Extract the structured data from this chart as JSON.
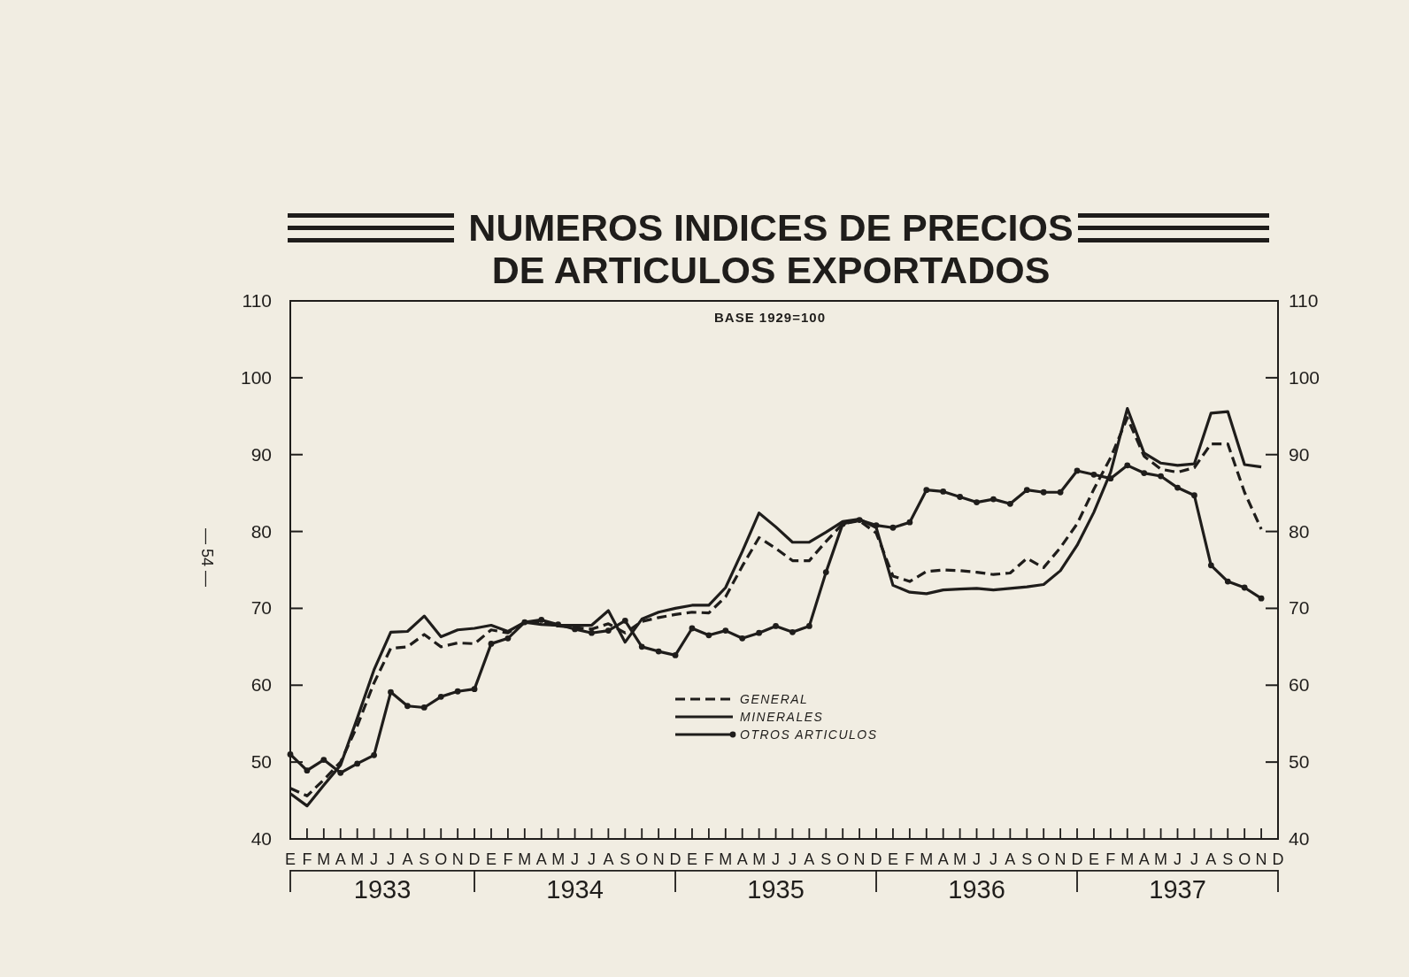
{
  "chart_data": {
    "type": "line",
    "title": "NUMEROS INDICES DE PRECIOS\nDE ARTICULOS EXPORTADOS",
    "subtitle": "BASE 1929=100",
    "categories": [
      "E",
      "F",
      "M",
      "A",
      "M",
      "J",
      "J",
      "A",
      "S",
      "O",
      "N",
      "D",
      "E",
      "F",
      "M",
      "A",
      "M",
      "J",
      "J",
      "A",
      "S",
      "O",
      "N",
      "D",
      "E",
      "F",
      "M",
      "A",
      "M",
      "J",
      "J",
      "A",
      "S",
      "O",
      "N",
      "D",
      "E",
      "F",
      "M",
      "A",
      "M",
      "J",
      "J",
      "A",
      "S",
      "O",
      "N",
      "D",
      "E",
      "F",
      "M",
      "A",
      "M",
      "J",
      "J",
      "A",
      "S",
      "O",
      "N",
      "D"
    ],
    "series": [
      {
        "name": "GENERAL",
        "color": "#1f1d1b",
        "line_style": "dashed",
        "marker": "none",
        "values": [
          46.6,
          45.6,
          47.7,
          50.0,
          54.7,
          60.3,
          64.8,
          65.0,
          66.6,
          65.0,
          65.5,
          65.4,
          67.2,
          66.8,
          68.2,
          68.2,
          67.7,
          67.5,
          67.3,
          68.0,
          66.8,
          68.3,
          68.8,
          69.2,
          69.5,
          69.4,
          71.5,
          75.5,
          79.2,
          77.8,
          76.2,
          76.2,
          78.7,
          81.0,
          81.4,
          79.8,
          74.2,
          73.5,
          74.8,
          75.0,
          74.9,
          74.7,
          74.4,
          74.6,
          76.5,
          75.3,
          77.9,
          81.0,
          85.5,
          89.6,
          94.8,
          89.8,
          88.1,
          87.7,
          88.3,
          91.4,
          91.4,
          85.1,
          80.3,
          null
        ]
      },
      {
        "name": "MINERALES",
        "color": "#1f1d1b",
        "line_style": "solid",
        "marker": "none",
        "values": [
          45.9,
          44.3,
          47.0,
          49.6,
          55.7,
          62.0,
          66.9,
          67.0,
          69.0,
          66.3,
          67.2,
          67.4,
          67.8,
          67.0,
          68.2,
          67.9,
          67.8,
          67.8,
          67.8,
          69.7,
          65.6,
          68.6,
          69.5,
          70.0,
          70.4,
          70.4,
          72.7,
          77.4,
          82.4,
          80.6,
          78.6,
          78.6,
          79.9,
          81.3,
          81.6,
          80.5,
          73.0,
          72.1,
          71.9,
          72.4,
          72.5,
          72.6,
          72.4,
          72.6,
          72.8,
          73.1,
          74.9,
          78.2,
          82.5,
          87.7,
          96.0,
          90.2,
          88.9,
          88.6,
          88.8,
          95.4,
          95.6,
          88.7,
          88.4,
          null
        ]
      },
      {
        "name": "OTROS ARTICULOS",
        "color": "#1f1d1b",
        "line_style": "solid",
        "marker": "circle",
        "values": [
          51.0,
          48.9,
          50.3,
          48.6,
          49.8,
          50.9,
          59.1,
          57.3,
          57.1,
          58.5,
          59.2,
          59.5,
          65.4,
          66.1,
          68.2,
          68.5,
          67.9,
          67.3,
          66.8,
          67.1,
          68.4,
          65.0,
          64.4,
          63.9,
          67.4,
          66.5,
          67.1,
          66.1,
          66.8,
          67.7,
          66.9,
          67.7,
          74.7,
          81.0,
          81.5,
          80.8,
          80.5,
          81.2,
          85.4,
          85.2,
          84.5,
          83.8,
          84.2,
          83.6,
          85.4,
          85.1,
          85.1,
          87.9,
          87.4,
          86.9,
          88.6,
          87.6,
          87.2,
          85.7,
          84.7,
          75.6,
          73.5,
          72.7,
          71.3,
          null
        ]
      }
    ],
    "ylim": [
      40,
      110
    ],
    "yticks": [
      40,
      50,
      60,
      70,
      80,
      90,
      100,
      110
    ],
    "y2lim": [
      40,
      110
    ],
    "y2ticks": [
      40,
      50,
      60,
      70,
      80,
      90,
      100,
      110
    ],
    "legend": "bottom",
    "annotations": [
      "1933",
      "1934",
      "1935",
      "1936",
      "1937",
      "— 54 —"
    ]
  }
}
